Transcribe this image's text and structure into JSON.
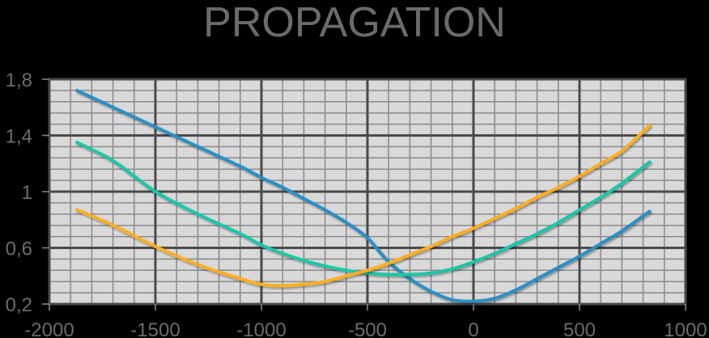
{
  "chart_data": {
    "type": "line",
    "title": "PROPAGATION",
    "xlabel": "",
    "ylabel": "",
    "xlim": [
      -2000,
      1000
    ],
    "ylim": [
      0.2,
      1.8
    ],
    "x_ticks": [
      -2000,
      -1500,
      -1000,
      -500,
      0,
      500,
      1000
    ],
    "x_tick_labels": [
      "-2000",
      "-1500",
      "-1000",
      "-500",
      "0",
      "500",
      "1000"
    ],
    "y_ticks": [
      0.2,
      0.6,
      1.0,
      1.4,
      1.8
    ],
    "y_tick_labels": [
      "0,2",
      "0,6",
      "1",
      "1,4",
      "1,8"
    ],
    "grid": {
      "major": true,
      "minor": true,
      "minor_x_step": 100,
      "minor_y_step": 0.08
    },
    "legend": null,
    "background": "#d9d9d9",
    "series": [
      {
        "name": "blue",
        "color": "#2a8fc4",
        "x": [
          -1870,
          -1700,
          -1500,
          -1300,
          -1100,
          -1000,
          -900,
          -800,
          -700,
          -600,
          -500,
          -400,
          -300,
          -200,
          -100,
          0,
          100,
          200,
          300,
          400,
          500,
          600,
          700,
          830
        ],
        "y": [
          1.72,
          1.6,
          1.46,
          1.32,
          1.18,
          1.1,
          1.03,
          0.95,
          0.87,
          0.78,
          0.67,
          0.5,
          0.38,
          0.29,
          0.23,
          0.22,
          0.24,
          0.3,
          0.38,
          0.46,
          0.54,
          0.63,
          0.72,
          0.86
        ]
      },
      {
        "name": "teal",
        "color": "#1cc6a8",
        "x": [
          -1870,
          -1700,
          -1500,
          -1300,
          -1100,
          -1000,
          -900,
          -800,
          -700,
          -600,
          -500,
          -400,
          -300,
          -200,
          -100,
          0,
          100,
          200,
          300,
          400,
          500,
          600,
          700,
          830
        ],
        "y": [
          1.35,
          1.22,
          1.0,
          0.84,
          0.7,
          0.62,
          0.56,
          0.51,
          0.47,
          0.44,
          0.42,
          0.41,
          0.41,
          0.42,
          0.45,
          0.5,
          0.56,
          0.63,
          0.7,
          0.78,
          0.87,
          0.96,
          1.06,
          1.21
        ]
      },
      {
        "name": "orange",
        "color": "#fbae22",
        "x": [
          -1870,
          -1700,
          -1500,
          -1300,
          -1100,
          -1000,
          -900,
          -800,
          -700,
          -600,
          -500,
          -400,
          -300,
          -200,
          -100,
          0,
          100,
          200,
          300,
          400,
          500,
          600,
          700,
          830
        ],
        "y": [
          0.87,
          0.76,
          0.61,
          0.48,
          0.38,
          0.34,
          0.33,
          0.34,
          0.36,
          0.4,
          0.44,
          0.49,
          0.55,
          0.61,
          0.68,
          0.74,
          0.81,
          0.88,
          0.96,
          1.03,
          1.11,
          1.2,
          1.29,
          1.47
        ]
      }
    ]
  }
}
